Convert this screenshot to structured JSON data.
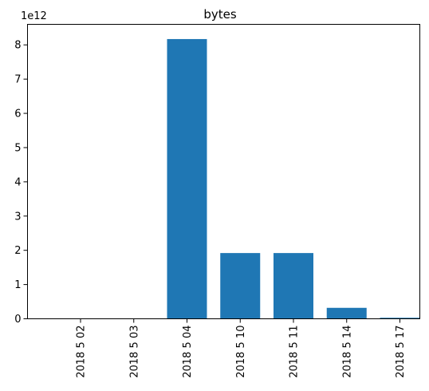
{
  "chart_data": {
    "type": "bar",
    "title": "bytes",
    "xlabel": "",
    "ylabel": "",
    "y_offset_label": "1e12",
    "categories": [
      "2018 5 02",
      "2018 5 03",
      "2018 5 04",
      "2018 5 10",
      "2018 5 11",
      "2018 5 14",
      "2018 5 17"
    ],
    "values": [
      0,
      0,
      8170000000000.0,
      1920000000000.0,
      1920000000000.0,
      320000000000.0,
      30000000000.0
    ],
    "ylim": [
      0,
      8600000000000.0
    ],
    "yticks": [
      0,
      1,
      2,
      3,
      4,
      5,
      6,
      7,
      8
    ],
    "grid": false,
    "bar_color": "#1f77b4"
  }
}
